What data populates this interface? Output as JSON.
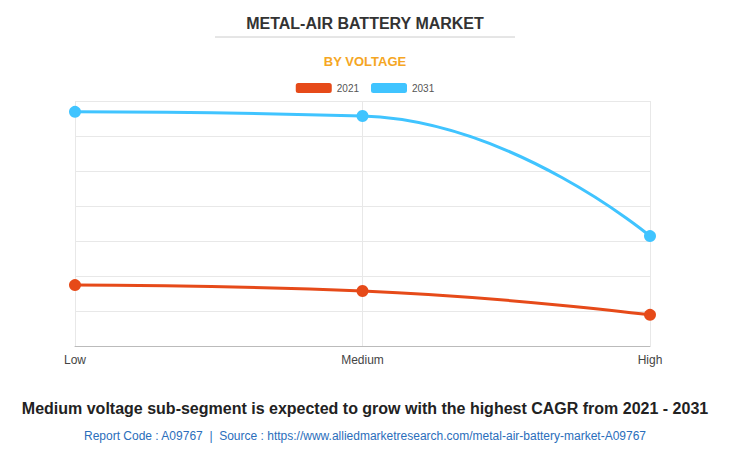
{
  "chart_data": {
    "type": "line",
    "title": "METAL-AIR BATTERY MARKET",
    "subtitle": "BY VOLTAGE",
    "categories": [
      "Low",
      "Medium",
      "High"
    ],
    "series": [
      {
        "name": "2021",
        "color": "#e64a19",
        "values": [
          1.74,
          1.57,
          0.89
        ]
      },
      {
        "name": "2031",
        "color": "#40c4ff",
        "values": [
          6.69,
          6.57,
          3.14
        ]
      }
    ],
    "ylim": [
      0,
      7
    ],
    "yticks": [
      0,
      1,
      2,
      3,
      4,
      5,
      6,
      7
    ],
    "grid": true,
    "legend": "top",
    "tick_labels": "x",
    "marker": "circle",
    "annotations": [
      "Medium voltage sub-segment is expected to grow with the highest CAGR from 2021 - 2031",
      "Report Code : A09767  |  Source : https://www.alliedmarketresearch.com/metal-air-battery-market-A09767"
    ]
  }
}
